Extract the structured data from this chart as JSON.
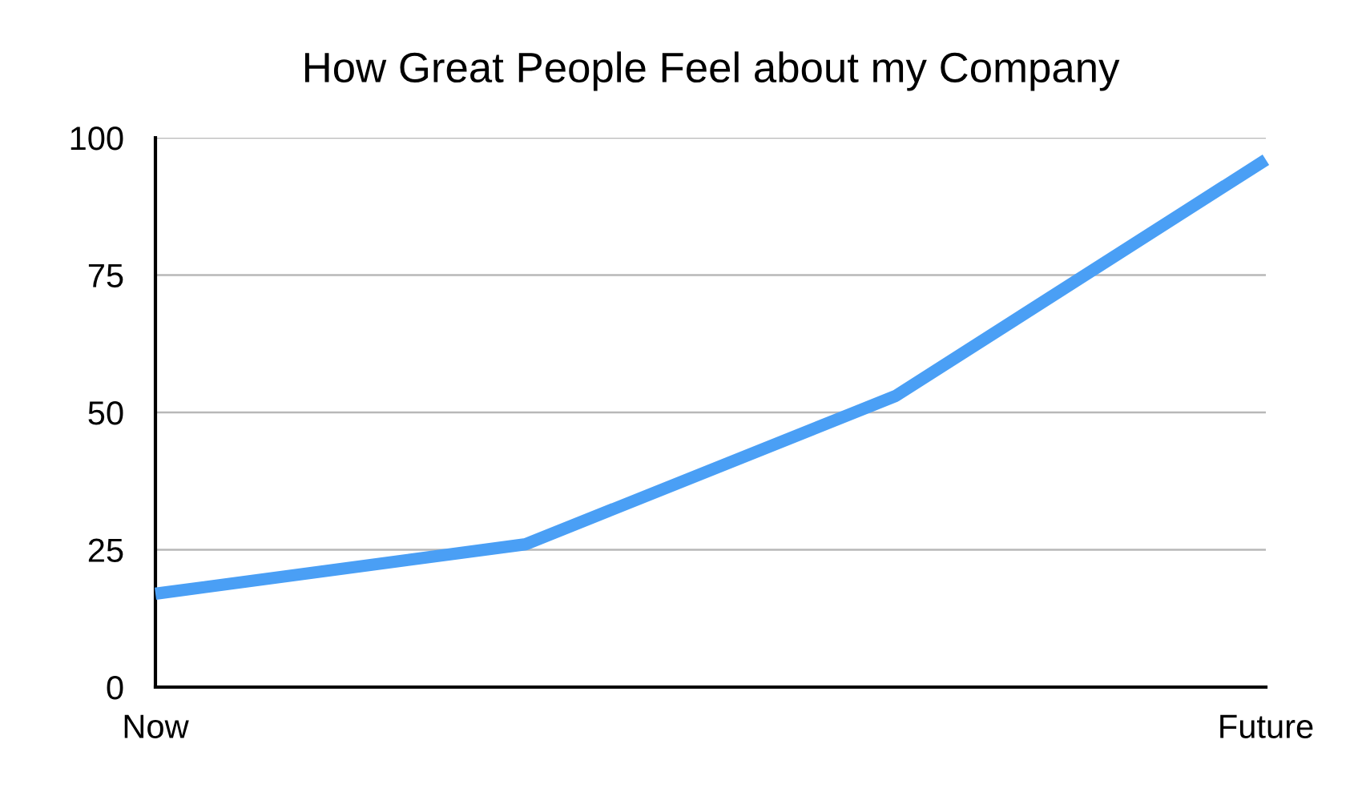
{
  "chart_data": {
    "type": "line",
    "title": "How Great People Feel about my Company",
    "categories": [
      "Now",
      null,
      null,
      "Future"
    ],
    "series": [
      {
        "color": "#4a9ff5",
        "values": [
          17,
          26,
          53,
          96
        ]
      }
    ],
    "ylim": [
      0,
      100
    ],
    "yticks": [
      0,
      25,
      50,
      75,
      100
    ],
    "grid": "y",
    "legend": false,
    "marker": "none",
    "line_style": "solid"
  }
}
